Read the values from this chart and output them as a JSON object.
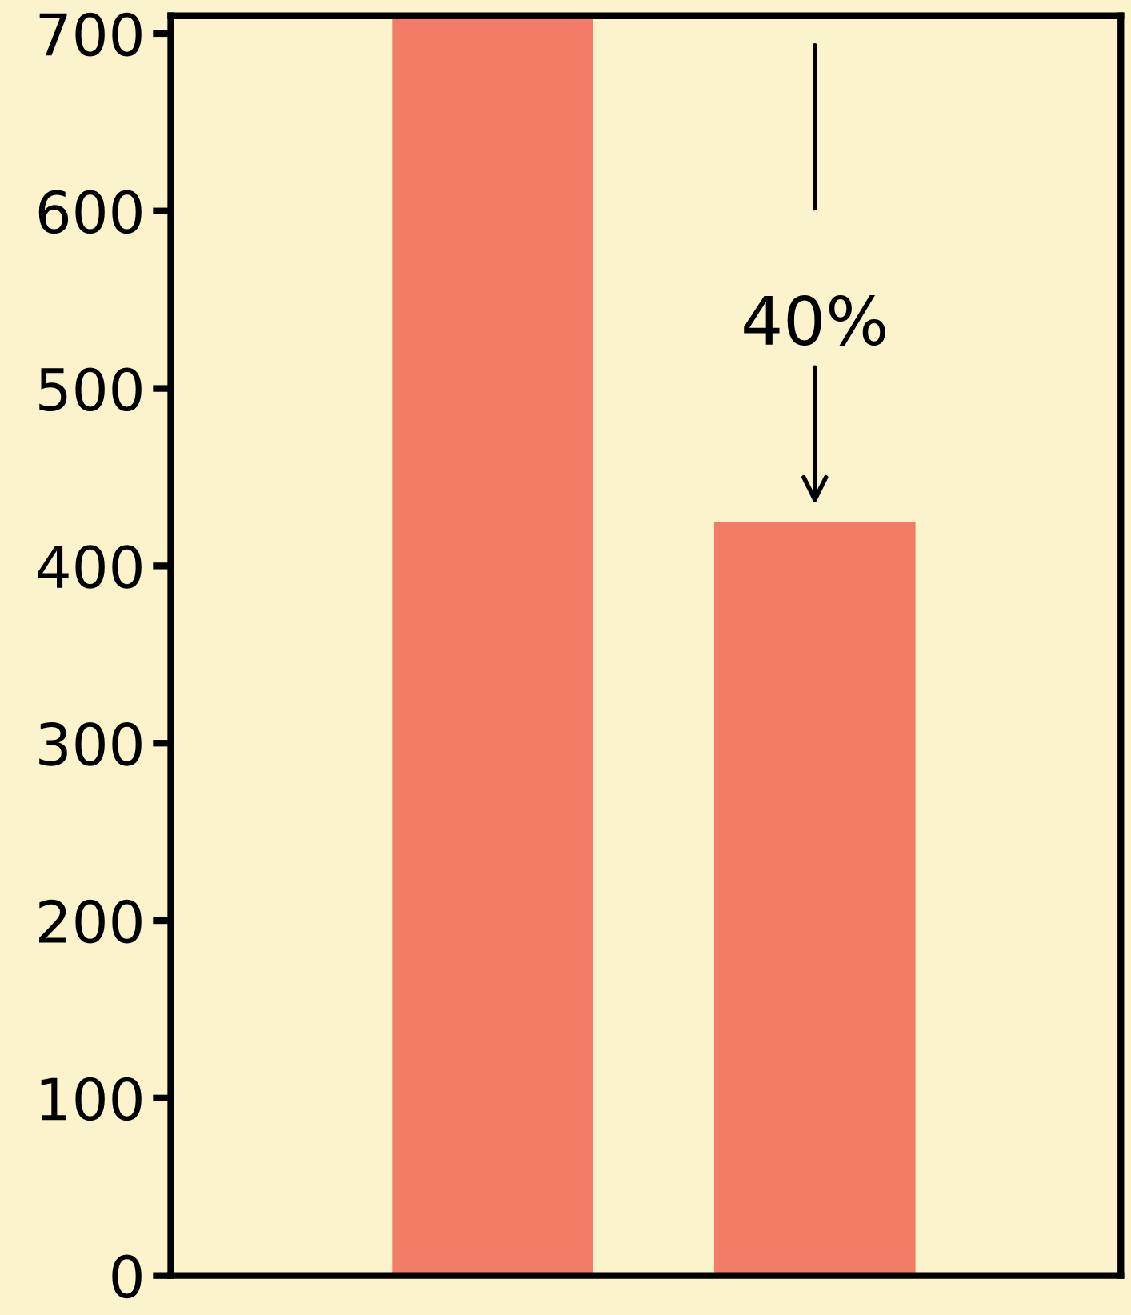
{
  "chart_data": {
    "type": "bar",
    "categories": [
      null,
      null
    ],
    "values": [
      710,
      425
    ],
    "color": "#f27c66",
    "ylim": [
      0,
      710
    ],
    "yticks": [
      0,
      100,
      200,
      300,
      400,
      500,
      600,
      700
    ],
    "annotations": [
      "40%"
    ],
    "grid": false,
    "legend": false,
    "tick_labels": "y"
  }
}
